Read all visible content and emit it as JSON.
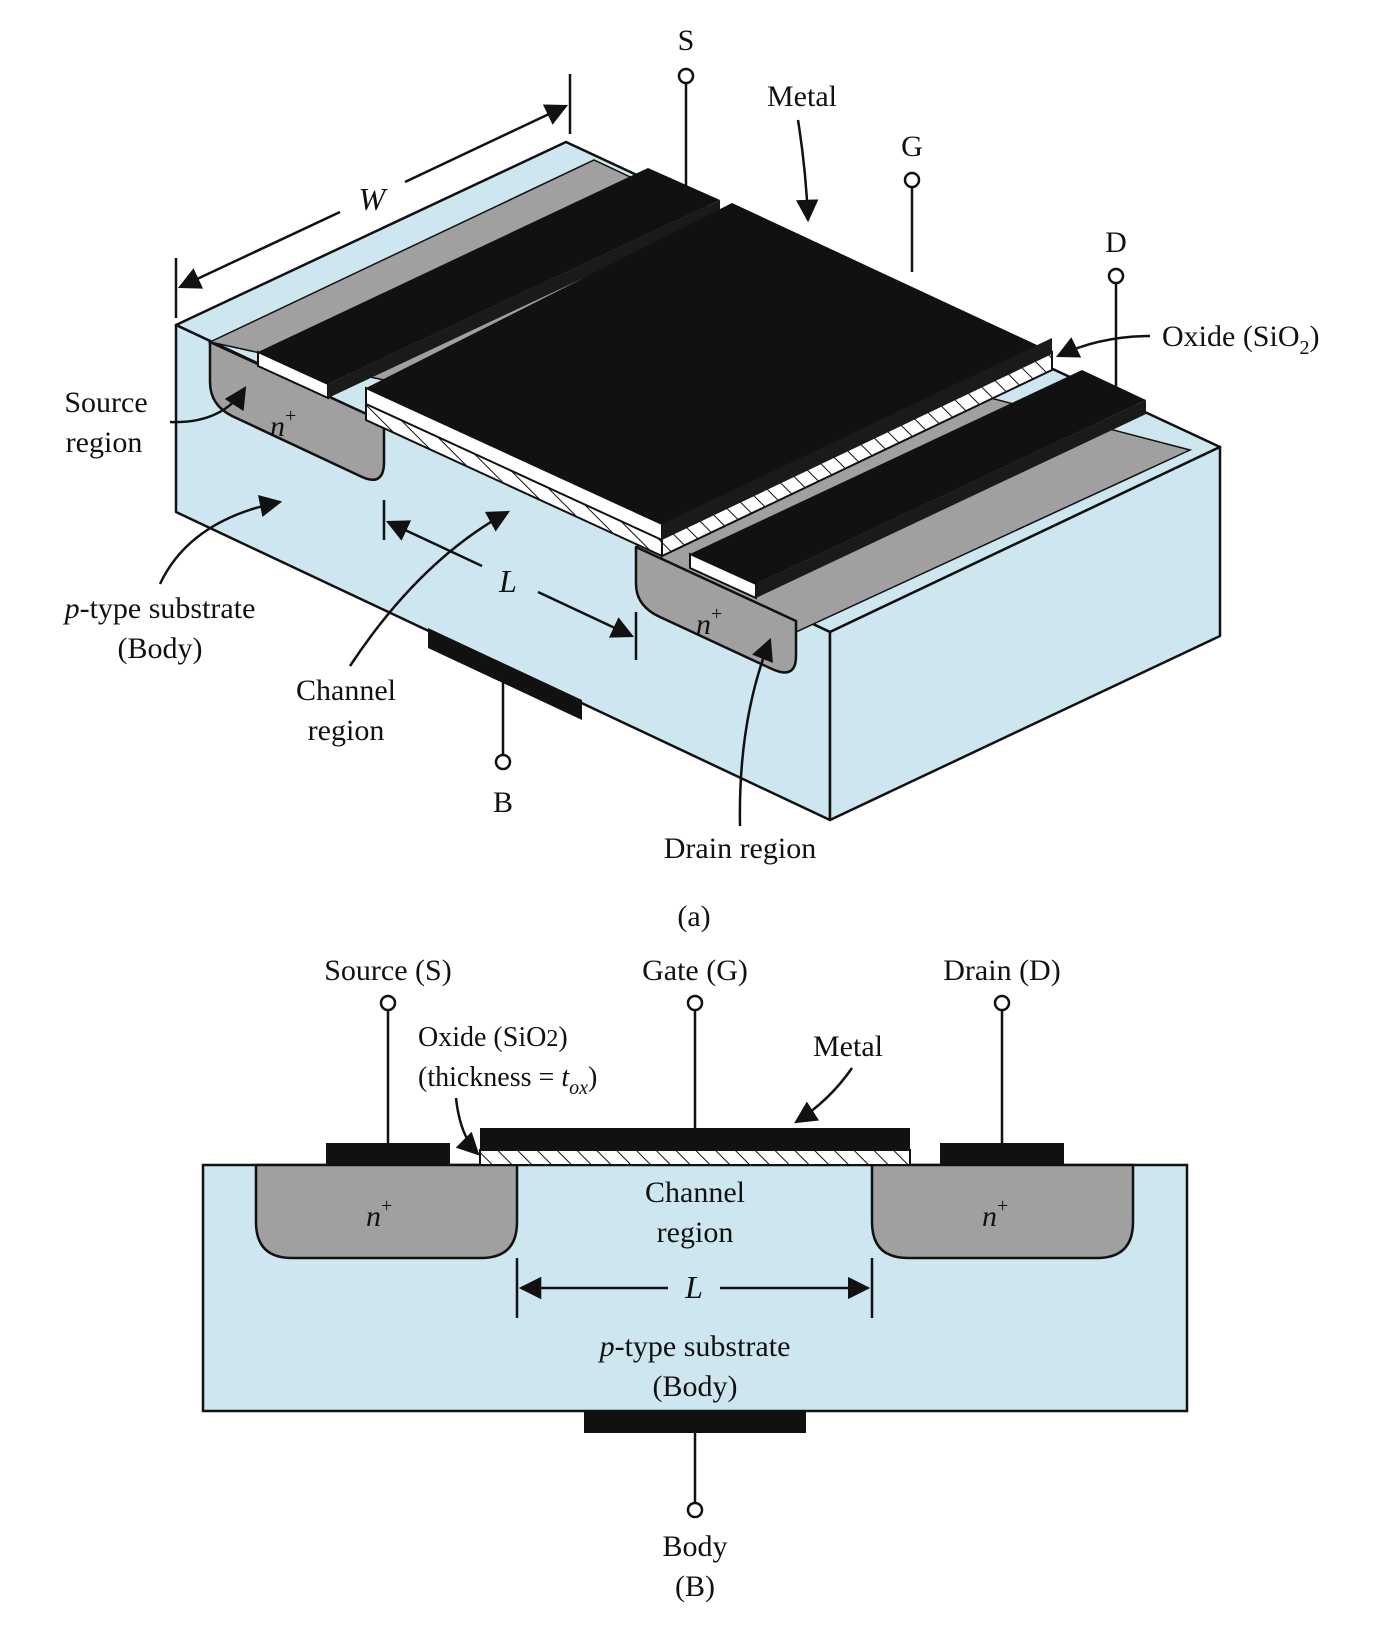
{
  "colors": {
    "substrate": "#cde6ef",
    "doped_region": "#a0a0a0",
    "metal": "#111111",
    "oxide": "#ffffff",
    "outline": "#111111"
  },
  "part_a": {
    "terminals": {
      "source": "S",
      "gate": "G",
      "drain": "D",
      "body": "B"
    },
    "labels": {
      "metal": "Metal",
      "oxide_prefix": "Oxide (SiO",
      "oxide_sub": "2",
      "oxide_suffix": ")",
      "source_region_line1": "Source",
      "source_region_line2": "region",
      "substrate_italic": "p",
      "substrate_rest": "-type substrate",
      "substrate_line2": "(Body)",
      "channel_line1": "Channel",
      "channel_line2": "region",
      "drain_region": "Drain region",
      "width": "W",
      "length": "L",
      "n_plus_base": "n",
      "n_plus_sup": "+"
    },
    "caption": "(a)"
  },
  "part_b": {
    "terminals": {
      "source": "Source (S)",
      "gate": "Gate (G)",
      "drain": "Drain (D)",
      "body_line1": "Body",
      "body_line2": "(B)"
    },
    "labels": {
      "oxide_prefix": "Oxide (SiO",
      "oxide_sub": "2",
      "oxide_suffix": ")",
      "thickness_prefix": "(thickness = ",
      "thickness_t": "t",
      "thickness_sub": "ox",
      "thickness_suffix": ")",
      "metal": "Metal",
      "channel_line1": "Channel",
      "channel_line2": "region",
      "length": "L",
      "substrate_italic": "p",
      "substrate_rest": "-type substrate",
      "substrate_line2": "(Body)",
      "n_plus_base": "n",
      "n_plus_sup": "+"
    }
  }
}
